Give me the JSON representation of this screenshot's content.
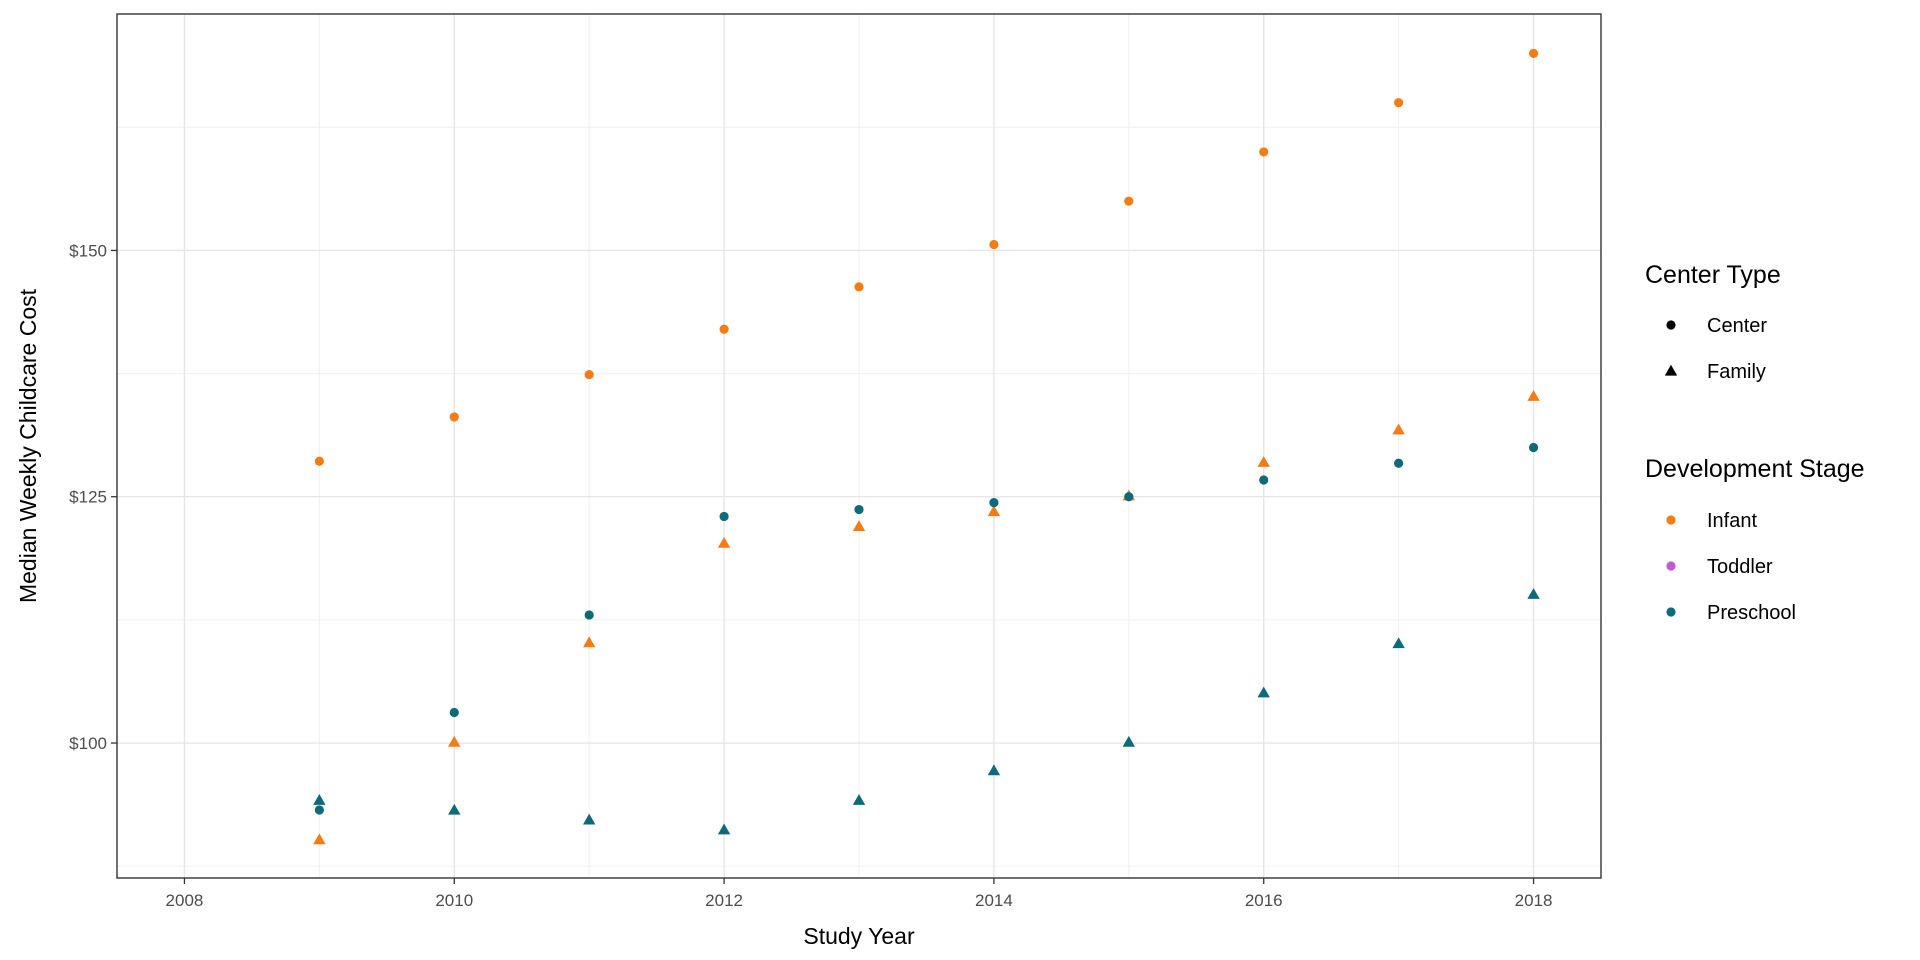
{
  "chart_data": {
    "type": "scatter",
    "title": "",
    "xlabel": "Study Year",
    "ylabel": "Median Weekly Childcare Cost",
    "xlim": [
      2007.5,
      2018.5
    ],
    "ylim": [
      86.3,
      174
    ],
    "x_ticks": [
      2008,
      2010,
      2012,
      2014,
      2016,
      2018
    ],
    "x_tick_labels": [
      "2008",
      "2010",
      "2012",
      "2014",
      "2016",
      "2018"
    ],
    "y_ticks": [
      100,
      125,
      150
    ],
    "y_tick_labels": [
      "$100",
      "$125",
      "$150"
    ],
    "y_minor_ticks": [
      87.5,
      112.5,
      137.5,
      162.5
    ],
    "grid": true,
    "legend_position": "right",
    "colors": {
      "Infant": "#f57c14",
      "Toddler": "#c05ccf",
      "Preschool": "#0d6a78"
    },
    "legends": [
      {
        "title": "Center Type",
        "items": [
          {
            "label": "Center",
            "shape": "circle",
            "color": "#000000"
          },
          {
            "label": "Family",
            "shape": "triangle",
            "color": "#000000"
          }
        ]
      },
      {
        "title": "Development Stage",
        "items": [
          {
            "label": "Infant",
            "shape": "circle",
            "color": "#f57c14"
          },
          {
            "label": "Toddler",
            "shape": "circle",
            "color": "#c05ccf"
          },
          {
            "label": "Preschool",
            "shape": "circle",
            "color": "#0d6a78"
          }
        ]
      }
    ],
    "series": [
      {
        "stage": "Infant",
        "center_type": "Center",
        "shape": "circle",
        "x": [
          2009,
          2010,
          2011,
          2012,
          2013,
          2014,
          2015,
          2016,
          2017,
          2018
        ],
        "y": [
          128.6,
          133.1,
          137.4,
          142.0,
          146.3,
          150.6,
          155.0,
          160.0,
          165.0,
          170.0
        ]
      },
      {
        "stage": "Infant",
        "center_type": "Family",
        "shape": "triangle",
        "x": [
          2009,
          2010,
          2011,
          2012,
          2013,
          2014,
          2015,
          2016,
          2017,
          2018
        ],
        "y": [
          90.2,
          100.1,
          110.2,
          120.3,
          122.0,
          123.5,
          125.1,
          128.5,
          131.8,
          135.2
        ]
      },
      {
        "stage": "Preschool",
        "center_type": "Center",
        "shape": "circle",
        "x": [
          2009,
          2010,
          2011,
          2012,
          2013,
          2014,
          2015,
          2016,
          2017,
          2018
        ],
        "y": [
          93.2,
          103.1,
          113.0,
          123.0,
          123.7,
          124.4,
          125.0,
          126.7,
          128.4,
          130.0
        ]
      },
      {
        "stage": "Preschool",
        "center_type": "Family",
        "shape": "triangle",
        "x": [
          2009,
          2010,
          2011,
          2012,
          2013,
          2014,
          2015,
          2016,
          2017,
          2018
        ],
        "y": [
          94.2,
          93.2,
          92.2,
          91.2,
          94.2,
          97.2,
          100.1,
          105.1,
          110.1,
          115.1
        ]
      }
    ]
  }
}
